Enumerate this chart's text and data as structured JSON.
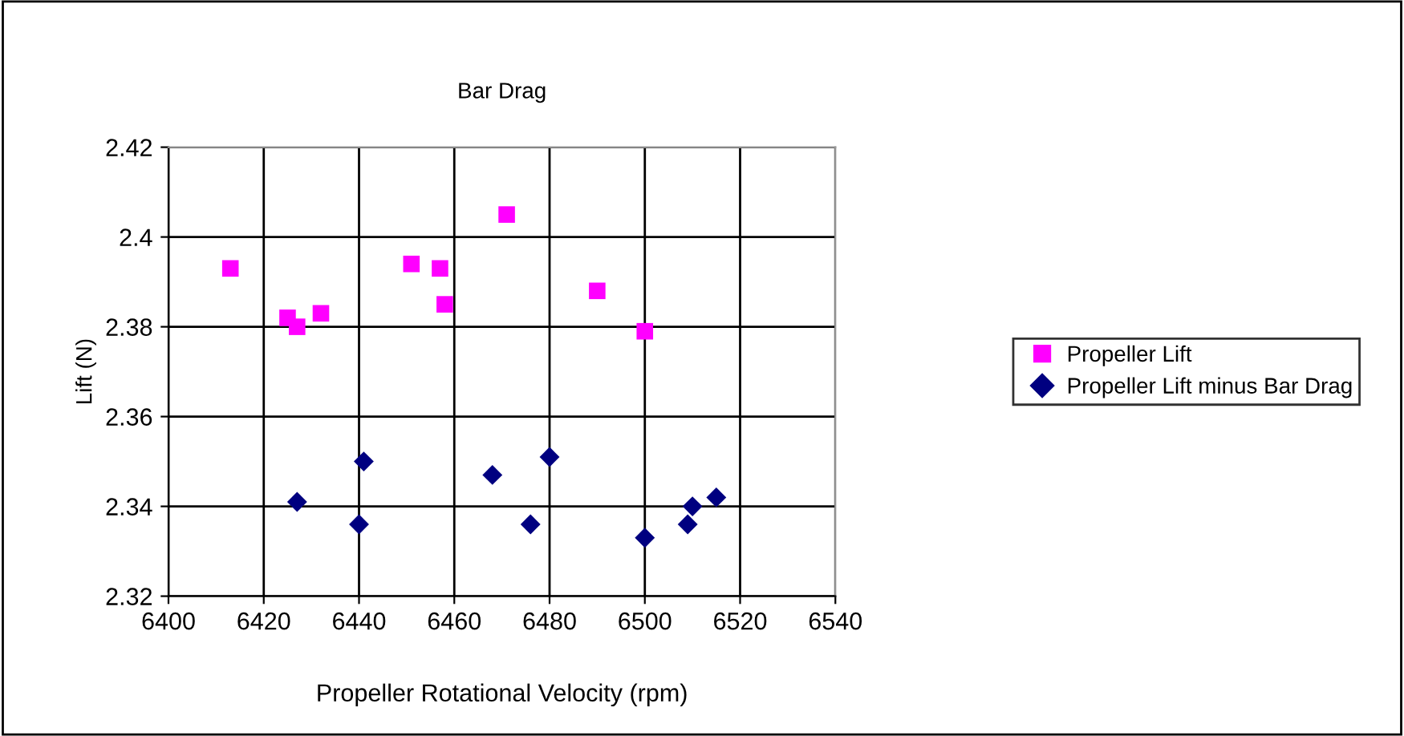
{
  "chart_data": {
    "type": "scatter",
    "title": "Bar Drag",
    "xlabel": "Propeller Rotational Velocity (rpm)",
    "ylabel": "Lift (N)",
    "xlim": [
      6400,
      6540
    ],
    "xticks": [
      6400,
      6420,
      6440,
      6460,
      6480,
      6500,
      6520,
      6540
    ],
    "ylim": [
      2.32,
      2.42
    ],
    "yticks": [
      2.32,
      2.34,
      2.36,
      2.38,
      2.4,
      2.42
    ],
    "grid": true,
    "legend": "right",
    "series": [
      {
        "name": "Propeller Lift",
        "color": "#ff00ff",
        "marker": "square",
        "x": [
          6413,
          6425,
          6427,
          6432,
          6451,
          6457,
          6458,
          6471,
          6490,
          6500
        ],
        "values": [
          2.393,
          2.382,
          2.38,
          2.383,
          2.394,
          2.393,
          2.385,
          2.405,
          2.388,
          2.379
        ]
      },
      {
        "name": "Propeller Lift minus Bar Drag",
        "color": "#000080",
        "marker": "diamond",
        "x": [
          6427,
          6441,
          6440,
          6468,
          6476,
          6480,
          6500,
          6509,
          6510,
          6515
        ],
        "values": [
          2.341,
          2.35,
          2.336,
          2.347,
          2.336,
          2.351,
          2.333,
          2.336,
          2.34,
          2.342
        ]
      }
    ]
  }
}
